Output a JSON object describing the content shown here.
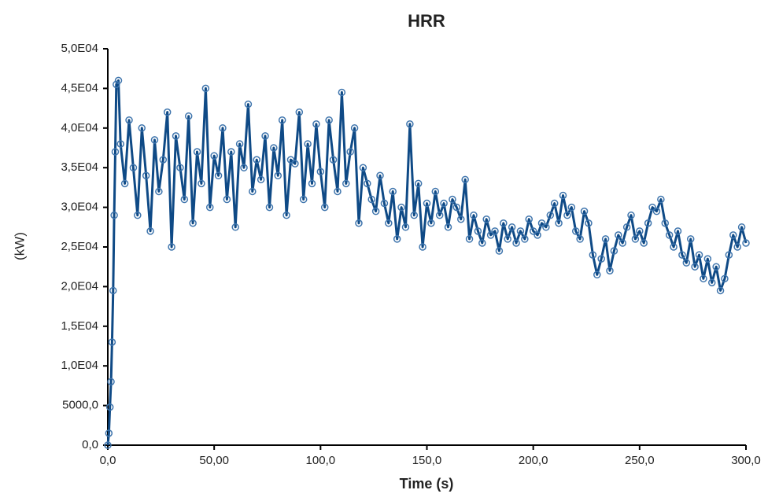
{
  "chart_data": {
    "type": "line",
    "title": "HRR",
    "xlabel": "Time (s)",
    "ylabel": "(kW)",
    "xlim": [
      0,
      300
    ],
    "ylim": [
      0,
      50000
    ],
    "xticks": [
      {
        "value": 0,
        "label": "0,0"
      },
      {
        "value": 50,
        "label": "50,00"
      },
      {
        "value": 100,
        "label": "100,0"
      },
      {
        "value": 150,
        "label": "150,0"
      },
      {
        "value": 200,
        "label": "200,0"
      },
      {
        "value": 250,
        "label": "250,0"
      },
      {
        "value": 300,
        "label": "300,0"
      }
    ],
    "yticks": [
      {
        "value": 0,
        "label": "0,0"
      },
      {
        "value": 5000,
        "label": "5000,0"
      },
      {
        "value": 10000,
        "label": "1,0E04"
      },
      {
        "value": 15000,
        "label": "1,5E04"
      },
      {
        "value": 20000,
        "label": "2,0E04"
      },
      {
        "value": 25000,
        "label": "2,5E04"
      },
      {
        "value": 30000,
        "label": "3,0E04"
      },
      {
        "value": 35000,
        "label": "3,5E04"
      },
      {
        "value": 40000,
        "label": "4,0E04"
      },
      {
        "value": 45000,
        "label": "4,5E04"
      },
      {
        "value": 50000,
        "label": "5,0E04"
      }
    ],
    "series": [
      {
        "color": "#0f4a86",
        "x": [
          0,
          0.5,
          1,
          1.5,
          2,
          2.5,
          3,
          3.5,
          4,
          5,
          6,
          8,
          10,
          12,
          14,
          16,
          18,
          20,
          22,
          24,
          26,
          28,
          30,
          32,
          34,
          36,
          38,
          40,
          42,
          44,
          46,
          48,
          50,
          52,
          54,
          56,
          58,
          60,
          62,
          64,
          66,
          68,
          70,
          72,
          74,
          76,
          78,
          80,
          82,
          84,
          86,
          88,
          90,
          92,
          94,
          96,
          98,
          100,
          102,
          104,
          106,
          108,
          110,
          112,
          114,
          116,
          118,
          120,
          122,
          124,
          126,
          128,
          130,
          132,
          134,
          136,
          138,
          140,
          142,
          144,
          146,
          148,
          150,
          152,
          154,
          156,
          158,
          160,
          162,
          164,
          166,
          168,
          170,
          172,
          174,
          176,
          178,
          180,
          182,
          184,
          186,
          188,
          190,
          192,
          194,
          196,
          198,
          200,
          202,
          204,
          206,
          208,
          210,
          212,
          214,
          216,
          218,
          220,
          222,
          224,
          226,
          228,
          230,
          232,
          234,
          236,
          238,
          240,
          242,
          244,
          246,
          248,
          250,
          252,
          254,
          256,
          258,
          260,
          262,
          264,
          266,
          268,
          270,
          272,
          274,
          276,
          278,
          280,
          282,
          284,
          286,
          288,
          290,
          292,
          294,
          296,
          298,
          300
        ],
        "values": [
          0,
          1500,
          4800,
          8000,
          13000,
          19500,
          29000,
          37000,
          45500,
          46000,
          38000,
          33000,
          41000,
          35000,
          29000,
          40000,
          34000,
          27000,
          38500,
          32000,
          36000,
          42000,
          25000,
          39000,
          35000,
          31000,
          41500,
          28000,
          37000,
          33000,
          45000,
          30000,
          36500,
          34000,
          40000,
          31000,
          37000,
          27500,
          38000,
          35000,
          43000,
          32000,
          36000,
          33500,
          39000,
          30000,
          37500,
          34000,
          41000,
          29000,
          36000,
          35500,
          42000,
          31000,
          38000,
          33000,
          40500,
          34500,
          30000,
          41000,
          36000,
          32000,
          44500,
          33000,
          37000,
          40000,
          28000,
          35000,
          33000,
          31000,
          29500,
          34000,
          30500,
          28000,
          32000,
          26000,
          30000,
          27500,
          40500,
          29000,
          33000,
          25000,
          30500,
          28000,
          32000,
          29000,
          30500,
          27500,
          31000,
          30000,
          28500,
          33500,
          26000,
          29000,
          27000,
          25500,
          28500,
          26500,
          27000,
          24500,
          28000,
          26000,
          27500,
          25500,
          27000,
          26000,
          28500,
          27000,
          26500,
          28000,
          27500,
          29000,
          30500,
          28000,
          31500,
          29000,
          30000,
          27000,
          26000,
          29500,
          28000,
          24000,
          21500,
          23500,
          26000,
          22000,
          24500,
          26500,
          25500,
          27500,
          29000,
          26000,
          27000,
          25500,
          28000,
          30000,
          29500,
          31000,
          28000,
          26500,
          25000,
          27000,
          24000,
          23000,
          26000,
          22500,
          24000,
          21000,
          23500,
          20500,
          22500,
          19500,
          21000,
          24000,
          26500,
          25000,
          27500,
          25500
        ]
      }
    ]
  }
}
